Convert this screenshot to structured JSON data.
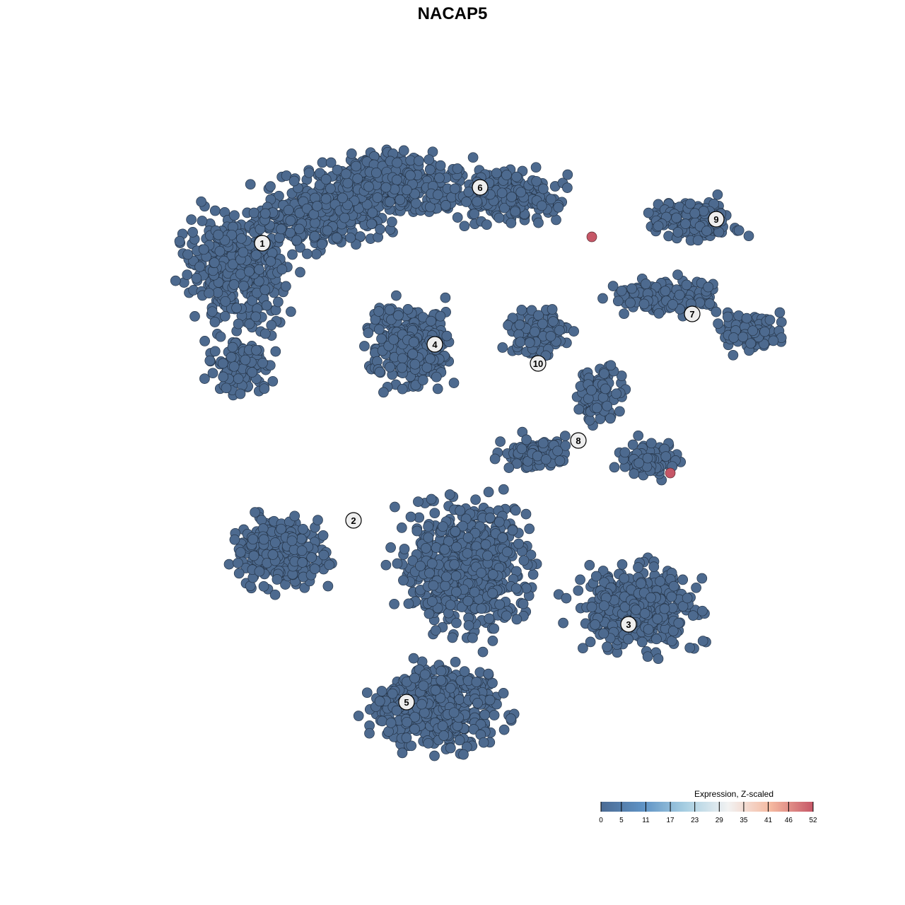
{
  "chart_data": {
    "type": "scatter",
    "title": "NACAP5",
    "xlabel": "",
    "ylabel": "",
    "axes_visible": false,
    "grid": false,
    "point_color_default": "#4d6a8f",
    "clusters": [
      {
        "label": "1",
        "label_xy": [
          -29.4,
          29.6
        ],
        "regions": [
          {
            "c": [
              -33,
              26
            ],
            "r": [
              10,
              11
            ],
            "n": 420
          },
          {
            "c": [
              -21,
              34
            ],
            "r": [
              12,
              7
            ],
            "n": 330
          },
          {
            "c": [
              -32.5,
              12
            ],
            "r": [
              6,
              6
            ],
            "n": 110
          }
        ]
      },
      {
        "label": "6",
        "label_xy": [
          1.4,
          37.5
        ],
        "regions": [
          {
            "c": [
              -10.5,
              38
            ],
            "r": [
              15,
              6
            ],
            "n": 380
          },
          {
            "c": [
              5.5,
              36
            ],
            "r": [
              10,
              5
            ],
            "n": 200
          }
        ]
      },
      {
        "label": "4",
        "label_xy": [
          -5.0,
          15.3
        ],
        "regions": [
          {
            "c": [
              -8.5,
              15
            ],
            "r": [
              8,
              8.5
            ],
            "n": 330
          }
        ]
      },
      {
        "label": "9",
        "label_xy": [
          34.8,
          33.0
        ],
        "regions": [
          {
            "c": [
              31.5,
              33
            ],
            "r": [
              9,
              4
            ],
            "n": 150
          }
        ]
      },
      {
        "label": "7",
        "label_xy": [
          31.4,
          19.6
        ],
        "regions": [
          {
            "c": [
              27.5,
              22
            ],
            "r": [
              10,
              3.5
            ],
            "n": 170
          },
          {
            "c": [
              39.5,
              17
            ],
            "r": [
              6,
              3.5
            ],
            "n": 110
          }
        ]
      },
      {
        "label": "10",
        "label_xy": [
          9.6,
          12.6
        ],
        "regions": [
          {
            "c": [
              9.5,
              17
            ],
            "r": [
              6,
              5
            ],
            "n": 110
          }
        ]
      },
      {
        "label": "8",
        "label_xy": [
          15.3,
          1.7
        ],
        "regions": [
          {
            "c": [
              18.5,
              8
            ],
            "r": [
              4,
              6
            ],
            "n": 110
          },
          {
            "c": [
              25.5,
              -1
            ],
            "r": [
              6,
              3.5
            ],
            "n": 110
          },
          {
            "c": [
              9.5,
              0
            ],
            "r": [
              7,
              3
            ],
            "n": 100
          }
        ]
      },
      {
        "label": "2",
        "label_xy": [
          -16.5,
          -9.6
        ],
        "regions": [
          {
            "c": [
              -26.5,
              -14
            ],
            "r": [
              9,
              7
            ],
            "n": 260
          }
        ]
      },
      {
        "label": "3",
        "label_xy": [
          22.4,
          -24.3
        ],
        "regions": [
          {
            "c": [
              23.5,
              -22
            ],
            "r": [
              12,
              8
            ],
            "n": 420
          }
        ]
      },
      {
        "label": "5",
        "label_xy": [
          -9.0,
          -35.3
        ],
        "regions": [
          {
            "c": [
              -4.5,
              -36
            ],
            "r": [
              13,
              8
            ],
            "n": 480
          },
          {
            "c": [
              -0.5,
              -16
            ],
            "r": [
              12,
              13
            ],
            "n": 620
          }
        ]
      }
    ],
    "highlighted_points": [
      {
        "x": 17.2,
        "y": 30.5,
        "value": 52
      },
      {
        "x": 28.3,
        "y": -2.9,
        "value": 52
      }
    ],
    "colorbar": {
      "title": "Expression, Z-scaled",
      "range": [
        0,
        52
      ],
      "ticks": [
        "0",
        "5",
        "11",
        "17",
        "23",
        "29",
        "35",
        "41",
        "46",
        "52"
      ],
      "colors": [
        "#4b6b94",
        "#5f93c5",
        "#a8cfe2",
        "#f2f2f2",
        "#f5b9a0",
        "#c65767"
      ],
      "placement": "bottom-right"
    }
  }
}
